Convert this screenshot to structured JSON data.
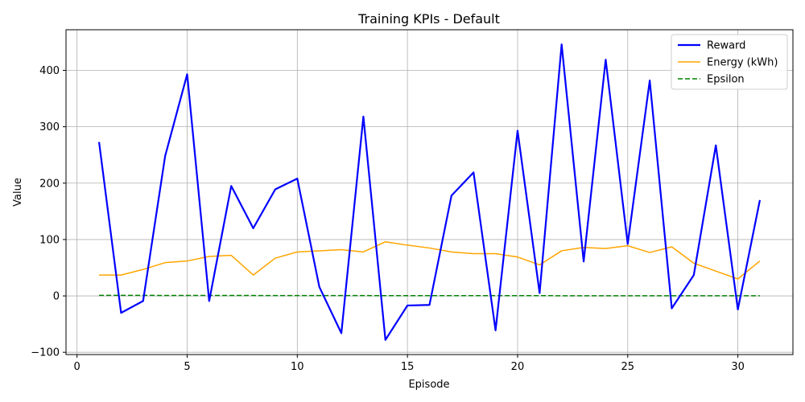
{
  "chart_data": {
    "type": "line",
    "title": "Training KPIs - Default",
    "xlabel": "Episode",
    "ylabel": "Value",
    "xlim": [
      -0.5,
      32.5
    ],
    "ylim": [
      -104,
      472
    ],
    "xticks": [
      0,
      5,
      10,
      15,
      20,
      25,
      30
    ],
    "yticks": [
      -100,
      0,
      100,
      200,
      300,
      400
    ],
    "grid": true,
    "legend_position": "top-right",
    "x": [
      1,
      2,
      3,
      4,
      5,
      6,
      7,
      8,
      9,
      10,
      11,
      12,
      13,
      14,
      15,
      16,
      17,
      18,
      19,
      20,
      21,
      22,
      23,
      24,
      25,
      26,
      27,
      28,
      29,
      30,
      31
    ],
    "series": [
      {
        "name": "Reward",
        "color": "#0000ff",
        "style": "solid",
        "values": [
          273,
          -30,
          -9,
          248,
          393,
          -9,
          195,
          120,
          189,
          208,
          16,
          -66,
          318,
          -78,
          -17,
          -16,
          178,
          219,
          -61,
          293,
          5,
          446,
          61,
          419,
          92,
          382,
          -22,
          37,
          267,
          -24,
          170
        ]
      },
      {
        "name": "Energy (kWh)",
        "color": "#ffa500",
        "style": "solid",
        "values": [
          37,
          37,
          47,
          59,
          62,
          70,
          72,
          37,
          67,
          78,
          80,
          82,
          78,
          96,
          90,
          85,
          78,
          75,
          75,
          69,
          55,
          80,
          86,
          84,
          89,
          77,
          87,
          58,
          44,
          30,
          62
        ]
      },
      {
        "name": "Epsilon",
        "color": "#008000",
        "style": "dashed",
        "values": [
          1.0,
          0.95,
          0.9,
          0.86,
          0.81,
          0.77,
          0.74,
          0.7,
          0.66,
          0.63,
          0.6,
          0.57,
          0.54,
          0.51,
          0.49,
          0.46,
          0.44,
          0.42,
          0.4,
          0.38,
          0.36,
          0.34,
          0.32,
          0.31,
          0.29,
          0.28,
          0.26,
          0.25,
          0.24,
          0.23,
          0.21
        ]
      }
    ]
  }
}
